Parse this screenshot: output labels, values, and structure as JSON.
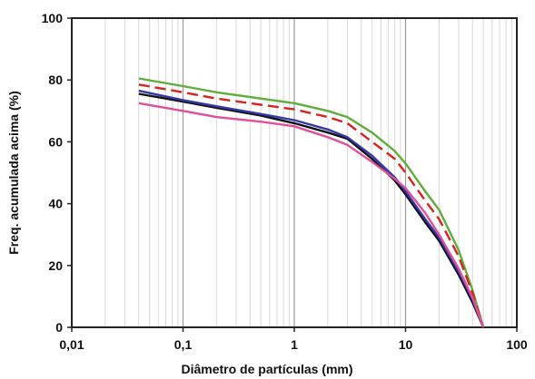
{
  "chart_data": {
    "type": "line",
    "title": "",
    "xlabel": "Diâmetro de partículas (mm)",
    "ylabel": "Freq. acumulada acima (%)",
    "x_scale": "log",
    "xlim": [
      0.01,
      100
    ],
    "ylim": [
      0,
      100
    ],
    "x_ticks": [
      0.01,
      0.1,
      1,
      10,
      100
    ],
    "x_tick_labels": [
      "0,01",
      "0,1",
      "1",
      "10",
      "100"
    ],
    "y_ticks": [
      0,
      20,
      40,
      60,
      80,
      100
    ],
    "y_tick_labels": [
      "0",
      "20",
      "40",
      "60",
      "80",
      "100"
    ],
    "grid": "vertical minor and major lines on x, none on y",
    "legend": "none",
    "series": [
      {
        "color": "#5fae3c",
        "style": "solid",
        "x": [
          0.04,
          0.1,
          0.2,
          0.5,
          1,
          2,
          3,
          5,
          8,
          10,
          15,
          20,
          30,
          40,
          50
        ],
        "y": [
          80.5,
          78,
          76,
          74,
          72.5,
          70,
          68,
          63,
          57,
          53,
          44,
          38,
          25,
          12,
          0
        ]
      },
      {
        "color": "#d8231f",
        "style": "dashed",
        "x": [
          0.04,
          0.1,
          0.2,
          0.5,
          1,
          2,
          3,
          5,
          8,
          10,
          15,
          20,
          30,
          40,
          50
        ],
        "y": [
          78.5,
          76,
          74,
          72,
          70.5,
          68,
          66,
          60,
          54.5,
          50,
          41,
          35,
          23,
          11,
          0
        ]
      },
      {
        "color": "#121212",
        "style": "solid",
        "x": [
          0.04,
          0.1,
          0.2,
          0.5,
          1,
          2,
          3,
          5,
          8,
          10,
          15,
          20,
          30,
          40,
          50
        ],
        "y": [
          75.5,
          73,
          71,
          68.5,
          66,
          63,
          61,
          54.5,
          47.5,
          43,
          34,
          28,
          17,
          8,
          0
        ]
      },
      {
        "color": "#3638a8",
        "style": "solid",
        "x": [
          0.04,
          0.1,
          0.2,
          0.5,
          1,
          2,
          3,
          5,
          8,
          10,
          15,
          20,
          30,
          40,
          50
        ],
        "y": [
          76.5,
          73.5,
          71.5,
          69,
          67,
          64,
          61.5,
          55.5,
          48.5,
          44,
          35,
          29,
          18,
          9,
          0
        ]
      },
      {
        "color": "#e0509a",
        "style": "solid",
        "x": [
          0.04,
          0.1,
          0.2,
          0.5,
          1,
          2,
          3,
          5,
          8,
          10,
          15,
          20,
          30,
          40,
          50
        ],
        "y": [
          72.5,
          70,
          68,
          66.5,
          65,
          61.5,
          59,
          53.5,
          48,
          45,
          37,
          30,
          19,
          9.5,
          0
        ]
      }
    ]
  }
}
